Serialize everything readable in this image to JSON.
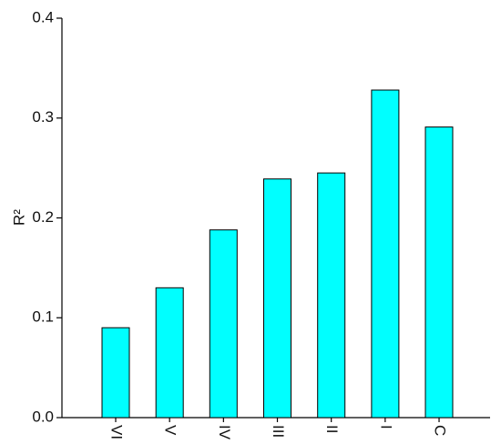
{
  "chart_data": {
    "type": "bar",
    "title": "",
    "xlabel": "",
    "ylabel": "R²",
    "categories": [
      "VI",
      "V",
      "IV",
      "III",
      "II",
      "I",
      "C"
    ],
    "values": [
      0.09,
      0.13,
      0.188,
      0.239,
      0.245,
      0.328,
      0.291
    ],
    "ylim": [
      0,
      0.4
    ],
    "yticks": [
      "0.0",
      "0.1",
      "0.2",
      "0.3",
      "0.4"
    ],
    "bar_color": "#00ffff",
    "grid": false,
    "x_tick_labels_rotated": true
  }
}
